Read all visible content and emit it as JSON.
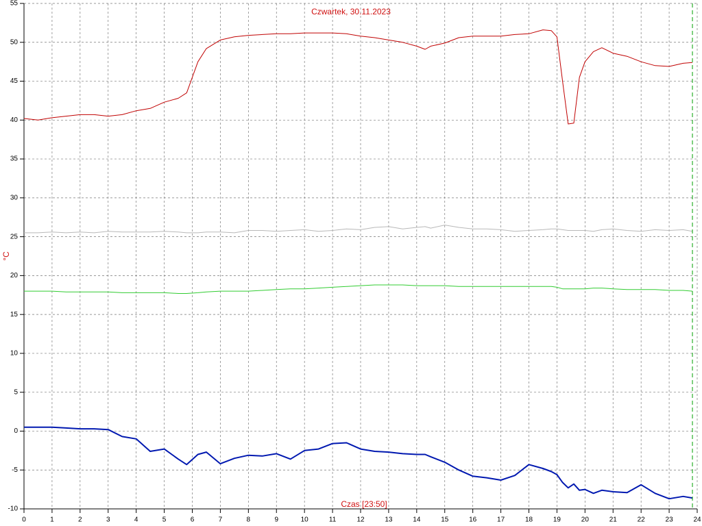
{
  "chart_data": {
    "type": "line",
    "title": "Czwartek, 30.11.2023",
    "y_label": "°C",
    "x_label": "Czas [23:50]",
    "x": [
      0,
      0.5,
      1,
      1.5,
      2,
      2.5,
      3,
      3.5,
      4,
      4.5,
      5,
      5.5,
      5.8,
      6.2,
      6.5,
      7,
      7.5,
      8,
      8.5,
      9,
      9.5,
      10,
      10.5,
      11,
      11.5,
      12,
      12.5,
      13,
      13.5,
      14,
      14.3,
      14.5,
      15,
      15.5,
      16,
      16.5,
      17,
      17.5,
      18,
      18.5,
      18.8,
      19,
      19.2,
      19.4,
      19.6,
      19.8,
      20,
      20.3,
      20.6,
      21,
      21.5,
      22,
      22.5,
      23,
      23.5,
      23.83
    ],
    "series": [
      {
        "color": "#c00000",
        "width": 1,
        "values": [
          40.2,
          40.0,
          40.3,
          40.5,
          40.7,
          40.7,
          40.5,
          40.7,
          41.2,
          41.5,
          42.3,
          42.8,
          43.5,
          47.5,
          49.2,
          50.3,
          50.7,
          50.9,
          51.0,
          51.1,
          51.1,
          51.2,
          51.2,
          51.2,
          51.1,
          50.8,
          50.6,
          50.3,
          50.0,
          49.5,
          49.1,
          49.5,
          49.9,
          50.6,
          50.8,
          50.8,
          50.8,
          51.0,
          51.1,
          51.6,
          51.5,
          50.7,
          45.0,
          39.5,
          39.6,
          45.5,
          47.5,
          48.8,
          49.3,
          48.6,
          48.2,
          47.5,
          47.0,
          46.9,
          47.3,
          47.4
        ]
      },
      {
        "color": "#b8b8b8",
        "width": 1,
        "values": [
          25.5,
          25.5,
          25.6,
          25.5,
          25.6,
          25.5,
          25.7,
          25.6,
          25.6,
          25.6,
          25.7,
          25.6,
          25.5,
          25.5,
          25.6,
          25.6,
          25.5,
          25.8,
          25.8,
          25.7,
          25.8,
          25.9,
          25.7,
          25.8,
          26.0,
          25.9,
          26.2,
          26.3,
          26.0,
          26.2,
          26.3,
          26.1,
          26.5,
          26.2,
          26.0,
          26.0,
          25.9,
          25.7,
          25.8,
          25.9,
          26.0,
          26.0,
          25.9,
          25.8,
          25.8,
          25.8,
          25.8,
          25.7,
          25.9,
          26.0,
          25.8,
          25.7,
          25.9,
          25.8,
          25.9,
          25.7
        ]
      },
      {
        "color": "#30cc30",
        "width": 1,
        "values": [
          18.0,
          18.0,
          18.0,
          17.9,
          17.9,
          17.9,
          17.9,
          17.8,
          17.8,
          17.8,
          17.8,
          17.7,
          17.7,
          17.8,
          17.9,
          18.0,
          18.0,
          18.0,
          18.1,
          18.2,
          18.3,
          18.3,
          18.4,
          18.5,
          18.6,
          18.7,
          18.8,
          18.8,
          18.8,
          18.7,
          18.7,
          18.7,
          18.7,
          18.6,
          18.6,
          18.6,
          18.6,
          18.6,
          18.6,
          18.6,
          18.6,
          18.5,
          18.3,
          18.3,
          18.3,
          18.3,
          18.3,
          18.4,
          18.4,
          18.3,
          18.2,
          18.2,
          18.2,
          18.1,
          18.1,
          18.0
        ]
      },
      {
        "color": "#0018b0",
        "width": 2,
        "values": [
          0.5,
          0.5,
          0.5,
          0.4,
          0.3,
          0.3,
          0.2,
          -0.7,
          -1.0,
          -2.6,
          -2.3,
          -3.6,
          -4.3,
          -3.0,
          -2.7,
          -4.2,
          -3.5,
          -3.1,
          -3.2,
          -2.9,
          -3.6,
          -2.5,
          -2.3,
          -1.6,
          -1.5,
          -2.3,
          -2.6,
          -2.7,
          -2.9,
          -3.0,
          -3.0,
          -3.3,
          -4.0,
          -5.0,
          -5.8,
          -6.0,
          -6.3,
          -5.7,
          -4.3,
          -4.8,
          -5.2,
          -5.6,
          -6.6,
          -7.3,
          -6.8,
          -7.6,
          -7.5,
          -8.0,
          -7.6,
          -7.8,
          -7.9,
          -6.9,
          -8.0,
          -8.7,
          -8.4,
          -8.6
        ]
      }
    ],
    "xlim": [
      0,
      24
    ],
    "ylim": [
      -10,
      55
    ],
    "xticks": [
      0,
      1,
      2,
      3,
      4,
      5,
      6,
      7,
      8,
      9,
      10,
      11,
      12,
      13,
      14,
      15,
      16,
      17,
      18,
      19,
      20,
      21,
      22,
      23,
      24
    ],
    "yticks": [
      -10,
      -5,
      0,
      5,
      10,
      15,
      20,
      25,
      30,
      35,
      40,
      45,
      50,
      55
    ],
    "grid": true
  }
}
